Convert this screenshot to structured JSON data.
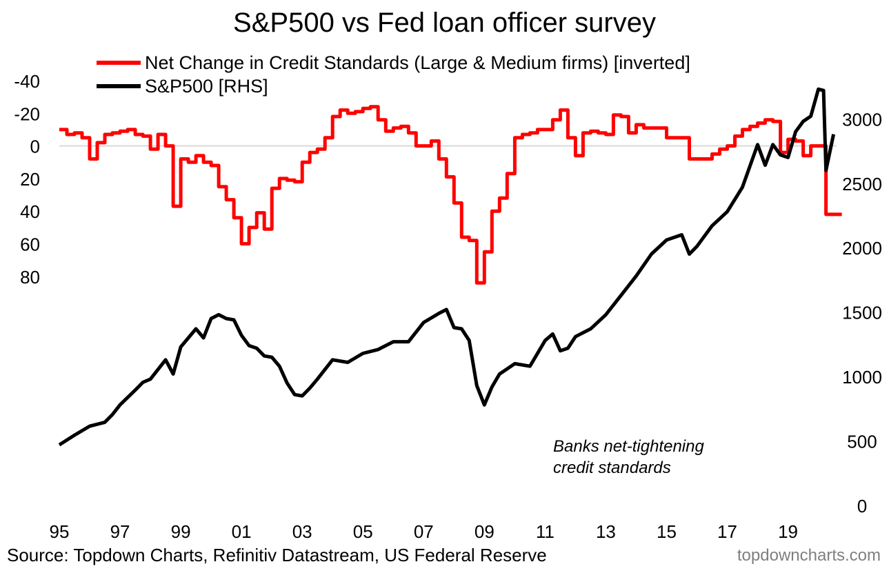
{
  "chart_data": {
    "type": "line",
    "title": "S&P500 vs Fed loan officer survey",
    "annotation_lines": [
      "Banks net-tightening",
      "credit standards"
    ],
    "source": "Source: Topdown Charts, Refinitiv Datastream, US Federal Reserve",
    "watermark": "topdowncharts.com",
    "x_tick_labels": [
      "95",
      "97",
      "99",
      "01",
      "03",
      "05",
      "07",
      "09",
      "11",
      "13",
      "15",
      "17",
      "19"
    ],
    "x_tick_years": [
      1995,
      1997,
      1999,
      2001,
      2003,
      2005,
      2007,
      2009,
      2011,
      2013,
      2015,
      2017,
      2019
    ],
    "xlim": [
      1995,
      2020.6
    ],
    "left_axis": {
      "ticks": [
        -40,
        -20,
        0,
        20,
        40,
        60,
        80
      ],
      "tick_labels": [
        "-40",
        "-20",
        "0",
        "20",
        "40",
        "60",
        "80"
      ],
      "range_top": -45,
      "range_bottom": 95,
      "inverted": true
    },
    "right_axis": {
      "ticks": [
        0,
        500,
        1000,
        1500,
        2000,
        2500,
        3000
      ],
      "tick_labels": [
        "0",
        "500",
        "1000",
        "1500",
        "2000",
        "2500",
        "3000"
      ],
      "range": [
        0,
        3250
      ]
    },
    "zero_line": true,
    "series": [
      {
        "name": "Net Change in Credit Standards (Large & Medium firms) [inverted]",
        "axis": "left",
        "color": "#ff0000",
        "x": [
          1995.0,
          1995.25,
          1995.5,
          1995.75,
          1996.0,
          1996.25,
          1996.5,
          1996.75,
          1997.0,
          1997.25,
          1997.5,
          1997.75,
          1998.0,
          1998.25,
          1998.5,
          1998.75,
          1999.0,
          1999.25,
          1999.5,
          1999.75,
          2000.0,
          2000.25,
          2000.5,
          2000.75,
          2001.0,
          2001.25,
          2001.5,
          2001.75,
          2002.0,
          2002.25,
          2002.5,
          2002.75,
          2003.0,
          2003.25,
          2003.5,
          2003.75,
          2004.0,
          2004.25,
          2004.5,
          2004.75,
          2005.0,
          2005.25,
          2005.5,
          2005.75,
          2006.0,
          2006.25,
          2006.5,
          2006.75,
          2007.0,
          2007.25,
          2007.5,
          2007.75,
          2008.0,
          2008.25,
          2008.5,
          2008.75,
          2009.0,
          2009.25,
          2009.5,
          2009.75,
          2010.0,
          2010.25,
          2010.5,
          2010.75,
          2011.0,
          2011.25,
          2011.5,
          2011.75,
          2012.0,
          2012.25,
          2012.5,
          2012.75,
          2013.0,
          2013.25,
          2013.5,
          2013.75,
          2014.0,
          2014.25,
          2014.5,
          2014.75,
          2015.0,
          2015.25,
          2015.5,
          2015.75,
          2016.0,
          2016.25,
          2016.5,
          2016.75,
          2017.0,
          2017.25,
          2017.5,
          2017.75,
          2018.0,
          2018.25,
          2018.5,
          2018.75,
          2019.0,
          2019.25,
          2019.5,
          2019.75,
          2020.0,
          2020.25,
          2020.5
        ],
        "y": [
          -10,
          -7,
          -8,
          -5,
          8,
          -2,
          -7,
          -8,
          -9,
          -10,
          -7,
          -6,
          2,
          -7,
          0,
          37,
          8,
          10,
          6,
          10,
          12,
          25,
          33,
          44,
          60,
          50,
          41,
          51,
          26,
          20,
          21,
          22,
          10,
          4,
          2,
          -5,
          -18,
          -22,
          -20,
          -21,
          -23,
          -24,
          -16,
          -9,
          -11,
          -12,
          -8,
          0,
          0,
          -3,
          8,
          19,
          35,
          56,
          58,
          84,
          65,
          40,
          32,
          17,
          -5,
          -7,
          -8,
          -10,
          -10,
          -16,
          -22,
          -5,
          6,
          -8,
          -9,
          -8,
          -7,
          -19,
          -18,
          -8,
          -13,
          -11,
          -11,
          -11,
          -5,
          -5,
          -5,
          8,
          8,
          8,
          5,
          2,
          0,
          -6,
          -10,
          -12,
          -14,
          -16,
          -15,
          4,
          -4,
          -3,
          6,
          0,
          0,
          42,
          42
        ]
      },
      {
        "name": "S&P500 [RHS]",
        "axis": "right",
        "color": "#000000",
        "x": [
          1995.0,
          1995.5,
          1996.0,
          1996.5,
          1996.75,
          1997.0,
          1997.5,
          1997.75,
          1998.0,
          1998.5,
          1998.75,
          1999.0,
          1999.5,
          1999.75,
          2000.0,
          2000.25,
          2000.5,
          2000.75,
          2001.0,
          2001.25,
          2001.5,
          2001.75,
          2002.0,
          2002.25,
          2002.5,
          2002.75,
          2003.0,
          2003.25,
          2003.5,
          2004.0,
          2004.5,
          2005.0,
          2005.5,
          2006.0,
          2006.5,
          2007.0,
          2007.5,
          2007.75,
          2008.0,
          2008.25,
          2008.5,
          2008.75,
          2009.0,
          2009.25,
          2009.5,
          2010.0,
          2010.5,
          2011.0,
          2011.25,
          2011.5,
          2011.75,
          2012.0,
          2012.5,
          2013.0,
          2013.5,
          2014.0,
          2014.5,
          2015.0,
          2015.5,
          2015.75,
          2016.0,
          2016.5,
          2017.0,
          2017.5,
          2018.0,
          2018.25,
          2018.5,
          2018.75,
          2019.0,
          2019.25,
          2019.5,
          2019.75,
          2020.0,
          2020.17,
          2020.25,
          2020.5
        ],
        "y": [
          470,
          545,
          615,
          645,
          705,
          780,
          895,
          955,
          980,
          1130,
          1020,
          1230,
          1370,
          1300,
          1450,
          1480,
          1450,
          1440,
          1320,
          1240,
          1220,
          1160,
          1150,
          1080,
          950,
          860,
          850,
          910,
          980,
          1130,
          1110,
          1180,
          1210,
          1270,
          1270,
          1420,
          1490,
          1520,
          1380,
          1370,
          1280,
          930,
          780,
          920,
          1020,
          1100,
          1080,
          1280,
          1330,
          1200,
          1220,
          1310,
          1370,
          1480,
          1630,
          1780,
          1950,
          2060,
          2100,
          1950,
          2010,
          2170,
          2280,
          2470,
          2800,
          2640,
          2800,
          2720,
          2700,
          2900,
          2980,
          3020,
          3230,
          3220,
          2600,
          2880
        ]
      }
    ]
  }
}
